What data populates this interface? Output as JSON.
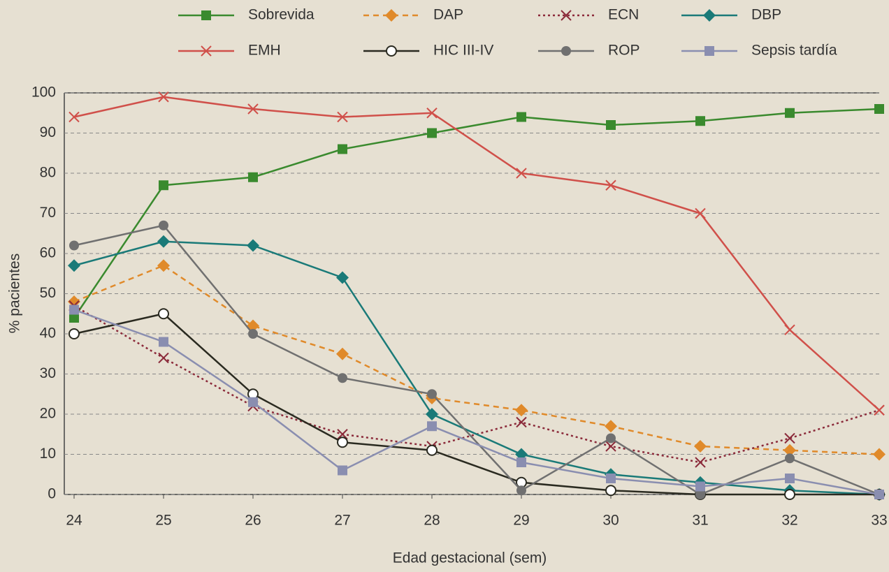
{
  "chart_data": {
    "type": "line",
    "x_label": "Edad gestacional (sem)",
    "y_label": "% pacientes",
    "x": [
      24,
      25,
      26,
      27,
      28,
      29,
      30,
      31,
      32,
      33
    ],
    "xlim": [
      24,
      33
    ],
    "xticks": [
      24,
      25,
      26,
      27,
      28,
      29,
      30,
      31,
      32,
      33
    ],
    "ylim": [
      0,
      100
    ],
    "yticks": [
      0,
      10,
      20,
      30,
      40,
      50,
      60,
      70,
      80,
      90,
      100
    ],
    "grid": true,
    "series": [
      {
        "name": "Sobrevida",
        "color": "#3a8a2e",
        "marker": "square",
        "line_style": "solid",
        "values": [
          44,
          77,
          79,
          86,
          90,
          94,
          92,
          93,
          95,
          96
        ]
      },
      {
        "name": "DAP",
        "color": "#e08a2a",
        "marker": "diamond",
        "line_style": "dashed",
        "values": [
          48,
          57,
          42,
          35,
          24,
          21,
          17,
          12,
          11,
          10
        ]
      },
      {
        "name": "ECN",
        "color": "#8b2a3a",
        "marker": "x",
        "line_style": "dotted",
        "values": [
          47,
          34,
          22,
          15,
          12,
          18,
          12,
          8,
          14,
          21
        ]
      },
      {
        "name": "DBP",
        "color": "#1a7a78",
        "marker": "diamond",
        "line_style": "solid",
        "values": [
          57,
          63,
          62,
          54,
          20,
          10,
          5,
          3,
          1,
          0
        ]
      },
      {
        "name": "EMH",
        "color": "#d0504a",
        "marker": "x",
        "line_style": "solid",
        "values": [
          94,
          99,
          96,
          94,
          95,
          80,
          77,
          70,
          41,
          21
        ]
      },
      {
        "name": "HIC III-IV",
        "color": "#2a2a20",
        "marker": "circle-open",
        "line_style": "solid",
        "values": [
          40,
          45,
          25,
          13,
          11,
          3,
          1,
          0,
          0,
          0
        ]
      },
      {
        "name": "ROP",
        "color": "#707070",
        "marker": "circle",
        "line_style": "solid",
        "values": [
          62,
          67,
          40,
          29,
          25,
          1,
          14,
          0,
          9,
          0
        ]
      },
      {
        "name": "Sepsis tardía",
        "color": "#8a8eb0",
        "marker": "square",
        "line_style": "solid",
        "values": [
          46,
          38,
          23,
          6,
          17,
          8,
          4,
          2,
          4,
          0
        ]
      }
    ]
  }
}
